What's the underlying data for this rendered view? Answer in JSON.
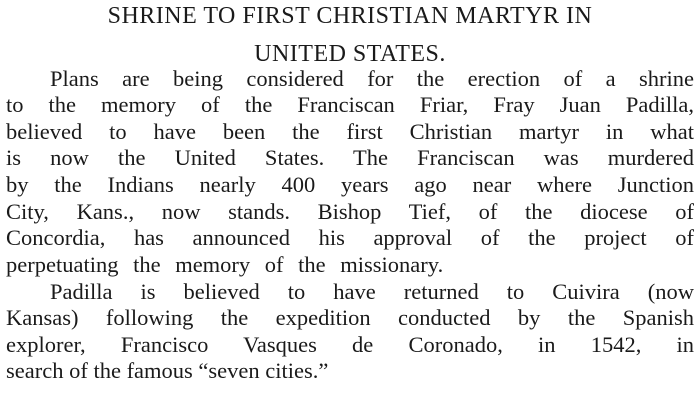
{
  "title_lines": [
    "SHRINE TO FIRST CHRISTIAN MARTYR IN",
    "UNITED STATES."
  ],
  "paragraphs": [
    {
      "lines": [
        "Plans are being considered for the erection of a shrine",
        "to the memory of the Franciscan Friar, Fray Juan Padilla,",
        "believed to have been the first Christian martyr in what",
        "is now the United States.  The Franciscan was murdered",
        "by the Indians nearly 400 years ago near where Junction",
        "City, Kans., now stands.  Bishop Tief, of the diocese of",
        "Concordia, has announced his approval of the project of",
        "perpetuating the memory of the missionary."
      ]
    },
    {
      "lines": [
        "Padilla is believed to have returned to Cuivira (now",
        "Kansas) following the expedition conducted by the Spanish",
        "explorer, Francisco Vasques de Coronado, in 1542, in",
        "search of the famous “seven cities.”"
      ]
    }
  ]
}
